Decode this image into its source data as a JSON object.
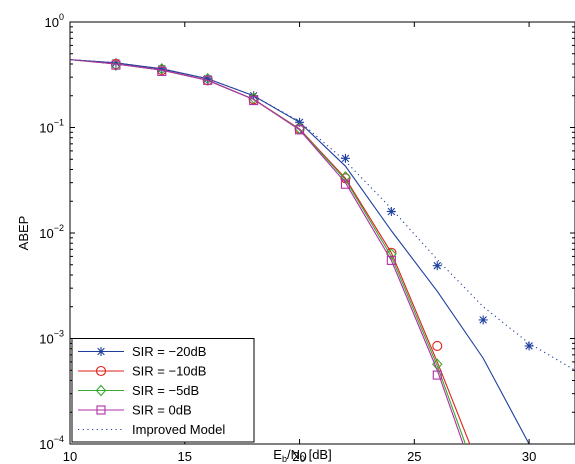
{
  "chart_data": {
    "type": "line",
    "xlabel": {
      "main": "E",
      "sub1": "b",
      "mid": "/N",
      "sub2": "0",
      "tail": " [dB]"
    },
    "ylabel": "ABEP",
    "xlim": [
      10,
      32
    ],
    "ylim": [
      0.0001,
      1
    ],
    "y_scale": "log",
    "grid": false,
    "x_ticks": [
      10,
      15,
      20,
      25,
      30
    ],
    "x_tick_labels": [
      "10",
      "15",
      "20",
      "25",
      "30"
    ],
    "y_ticks": [
      0.0001,
      0.001,
      0.01,
      0.1,
      1
    ],
    "y_tick_labels": [
      {
        "base": "10",
        "exp": "−4"
      },
      {
        "base": "10",
        "exp": "−3"
      },
      {
        "base": "10",
        "exp": "−2"
      },
      {
        "base": "10",
        "exp": "−1"
      },
      {
        "base": "10",
        "exp": "0"
      }
    ],
    "legend_position": "bottom-left",
    "series": [
      {
        "name": "SIR = −20dB",
        "color": "#1f3f9f",
        "marker": "star",
        "linestyle": "solid",
        "line": {
          "x": [
            10,
            12,
            14,
            16,
            18,
            20,
            22,
            24,
            26,
            28,
            30,
            31
          ],
          "y": [
            0.44,
            0.41,
            0.36,
            0.29,
            0.2,
            0.112,
            0.043,
            0.0105,
            0.0028,
            0.00065,
            0.0001,
            4.2e-05
          ]
        },
        "markers": {
          "x": [
            12,
            14,
            16,
            18,
            20,
            22,
            24,
            26,
            28,
            30
          ],
          "y": [
            0.41,
            0.36,
            0.29,
            0.2,
            0.112,
            0.051,
            0.016,
            0.0049,
            0.0015,
            0.00085
          ]
        }
      },
      {
        "name": "SIR = −10dB",
        "color": "#e0201a",
        "marker": "circle",
        "linestyle": "solid",
        "line": {
          "x": [
            10,
            12,
            14,
            16,
            18,
            20,
            22,
            24,
            26,
            27.5,
            28
          ],
          "y": [
            0.44,
            0.4,
            0.35,
            0.28,
            0.185,
            0.097,
            0.033,
            0.0065,
            0.0006,
            9e-05,
            4e-05
          ]
        },
        "markers": {
          "x": [
            12,
            14,
            16,
            18,
            20,
            22,
            24,
            26
          ],
          "y": [
            0.4,
            0.35,
            0.28,
            0.185,
            0.097,
            0.033,
            0.0065,
            0.00085
          ]
        }
      },
      {
        "name": "SIR = −5dB",
        "color": "#3aa832",
        "marker": "diamond",
        "linestyle": "solid",
        "line": {
          "x": [
            10,
            12,
            14,
            16,
            18,
            20,
            22,
            24,
            26,
            27.3,
            28
          ],
          "y": [
            0.44,
            0.4,
            0.35,
            0.28,
            0.185,
            0.096,
            0.032,
            0.006,
            0.00055,
            9e-05,
            4e-05
          ]
        },
        "markers": {
          "x": [
            12,
            14,
            16,
            18,
            20,
            22,
            24,
            26
          ],
          "y": [
            0.39,
            0.36,
            0.29,
            0.19,
            0.098,
            0.034,
            0.0063,
            0.00057
          ]
        }
      },
      {
        "name": "SIR = 0dB",
        "color": "#b02fa8",
        "marker": "square",
        "linestyle": "solid",
        "line": {
          "x": [
            10,
            12,
            14,
            16,
            18,
            20,
            22,
            24,
            26,
            27.2,
            28
          ],
          "y": [
            0.44,
            0.4,
            0.35,
            0.28,
            0.185,
            0.095,
            0.03,
            0.0055,
            0.0005,
            9e-05,
            4e-05
          ]
        },
        "markers": {
          "x": [
            12,
            14,
            16,
            18,
            20,
            22,
            24,
            26
          ],
          "y": [
            0.39,
            0.34,
            0.28,
            0.18,
            0.095,
            0.029,
            0.0055,
            0.00045
          ]
        }
      },
      {
        "name": "Improved Model",
        "color": "#1f3f9f",
        "marker": "none",
        "linestyle": "dotted",
        "line": {
          "x": [
            10,
            12,
            14,
            16,
            18,
            20,
            22,
            24,
            26,
            28,
            30,
            32
          ],
          "y": [
            0.44,
            0.41,
            0.36,
            0.29,
            0.2,
            0.114,
            0.048,
            0.017,
            0.0056,
            0.002,
            0.0009,
            0.0005
          ]
        }
      }
    ]
  }
}
